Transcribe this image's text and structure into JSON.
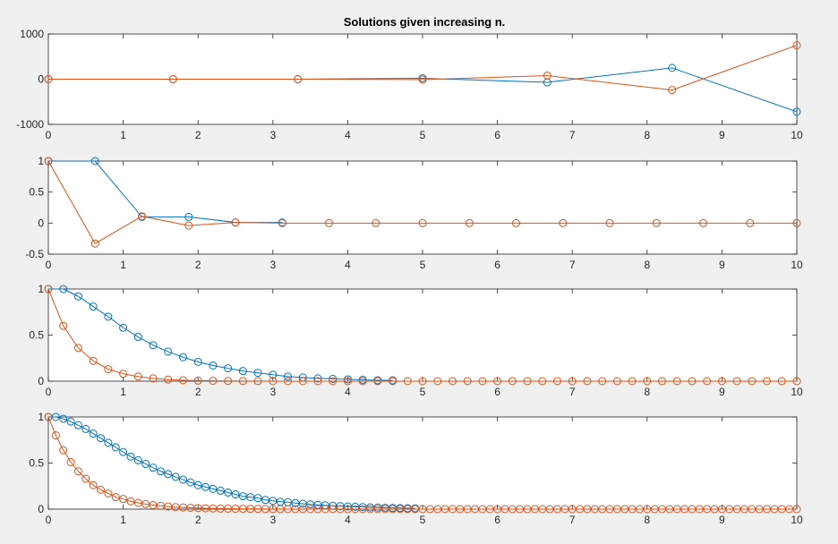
{
  "figure": {
    "title": "Solutions given increasing n."
  },
  "colors": {
    "background": "#f0f0f0",
    "axes": "#ffffff",
    "series1": "#0072bd",
    "series2": "#d95319"
  },
  "chart_data": [
    {
      "type": "line",
      "title": "Solutions given increasing n.",
      "xlim": [
        0,
        10
      ],
      "ylim": [
        -1000,
        1000
      ],
      "xticks": [
        "0",
        "1",
        "2",
        "3",
        "4",
        "5",
        "6",
        "7",
        "8",
        "9",
        "10"
      ],
      "yticks": [
        "-1000",
        "0",
        "1000"
      ],
      "ytick_values": [
        -1000,
        0,
        1000
      ],
      "series": [
        {
          "color": "#0072bd",
          "x": [
            0,
            1.6667,
            3.3333,
            5,
            6.6667,
            8.3333,
            10
          ],
          "y": [
            0,
            0,
            0,
            20,
            -70,
            250,
            -720
          ]
        },
        {
          "color": "#d95319",
          "x": [
            0,
            1.6667,
            3.3333,
            5,
            6.6667,
            8.3333,
            10
          ],
          "y": [
            0,
            0,
            0,
            -10,
            80,
            -240,
            750
          ]
        }
      ]
    },
    {
      "type": "line",
      "xlim": [
        0,
        10
      ],
      "ylim": [
        -0.5,
        1
      ],
      "xticks": [
        "0",
        "1",
        "2",
        "3",
        "4",
        "5",
        "6",
        "7",
        "8",
        "9",
        "10"
      ],
      "yticks": [
        "-0.5",
        "0",
        "0.5",
        "1"
      ],
      "ytick_values": [
        -0.5,
        0,
        0.5,
        1
      ],
      "series": [
        {
          "color": "#0072bd",
          "x": [
            0,
            0.625,
            1.25,
            1.875,
            2.5,
            3.125
          ],
          "y": [
            1,
            1,
            0.1,
            0.1,
            0.01,
            0.01
          ]
        },
        {
          "color": "#d95319",
          "x": [
            0,
            0.625,
            1.25,
            1.875,
            2.5,
            3.125,
            3.75,
            4.375,
            5,
            5.625,
            6.25,
            6.875,
            7.5,
            8.125,
            8.75,
            9.375,
            10
          ],
          "y": [
            1,
            -0.33,
            0.11,
            -0.04,
            0.01,
            0,
            0,
            0,
            0,
            0,
            0,
            0,
            0,
            0,
            0,
            0,
            0
          ]
        }
      ]
    },
    {
      "type": "line",
      "xlim": [
        0,
        10
      ],
      "ylim": [
        0,
        1
      ],
      "xticks": [
        "0",
        "1",
        "2",
        "3",
        "4",
        "5",
        "6",
        "7",
        "8",
        "9",
        "10"
      ],
      "yticks": [
        "0",
        "0.5",
        "1"
      ],
      "ytick_values": [
        0,
        0.5,
        1
      ],
      "series": [
        {
          "color": "#0072bd",
          "x": [
            0,
            0.2,
            0.4,
            0.6,
            0.8,
            1.0,
            1.2,
            1.4,
            1.6,
            1.8,
            2.0,
            2.2,
            2.4,
            2.6,
            2.8,
            3.0,
            3.2,
            3.4,
            3.6,
            3.8,
            4.0,
            4.2,
            4.4,
            4.6
          ],
          "y": [
            1.0,
            1.0,
            0.92,
            0.81,
            0.7,
            0.58,
            0.48,
            0.39,
            0.32,
            0.26,
            0.21,
            0.17,
            0.14,
            0.11,
            0.09,
            0.07,
            0.05,
            0.04,
            0.03,
            0.025,
            0.02,
            0.015,
            0.01,
            0.008
          ]
        },
        {
          "color": "#d95319",
          "x": [
            0,
            0.2,
            0.4,
            0.6,
            0.8,
            1.0,
            1.2,
            1.4,
            1.6,
            1.8,
            2.0,
            2.2,
            2.4,
            2.6,
            2.8,
            3.0,
            3.2,
            3.4,
            3.6,
            3.8,
            4.0,
            4.2,
            4.4,
            4.6,
            4.8,
            5.0,
            5.2,
            5.4,
            5.6,
            5.8,
            6.0,
            6.2,
            6.4,
            6.6,
            6.8,
            7.0,
            7.2,
            7.4,
            7.6,
            7.8,
            8.0,
            8.2,
            8.4,
            8.6,
            8.8,
            9.0,
            9.2,
            9.4,
            9.6,
            9.8,
            10.0
          ],
          "y": [
            1.0,
            0.6,
            0.36,
            0.22,
            0.13,
            0.08,
            0.05,
            0.03,
            0.017,
            0.01,
            0.006,
            0.004,
            0.002,
            0.001,
            0.001,
            0,
            0,
            0,
            0,
            0,
            0,
            0,
            0,
            0,
            0,
            0,
            0,
            0,
            0,
            0,
            0,
            0,
            0,
            0,
            0,
            0,
            0,
            0,
            0,
            0,
            0,
            0,
            0,
            0,
            0,
            0,
            0,
            0,
            0,
            0,
            0
          ]
        }
      ]
    },
    {
      "type": "line",
      "xlim": [
        0,
        10
      ],
      "ylim": [
        0,
        1
      ],
      "xticks": [
        "0",
        "1",
        "2",
        "3",
        "4",
        "5",
        "6",
        "7",
        "8",
        "9",
        "10"
      ],
      "yticks": [
        "0",
        "0.5",
        "1"
      ],
      "ytick_values": [
        0,
        0.5,
        1
      ],
      "series": [
        {
          "color": "#0072bd",
          "x": [
            0,
            0.1,
            0.2,
            0.3,
            0.4,
            0.5,
            0.6,
            0.7,
            0.8,
            0.9,
            1.0,
            1.1,
            1.2,
            1.3,
            1.4,
            1.5,
            1.6,
            1.7,
            1.8,
            1.9,
            2.0,
            2.1,
            2.2,
            2.3,
            2.4,
            2.5,
            2.6,
            2.7,
            2.8,
            2.9,
            3.0,
            3.1,
            3.2,
            3.3,
            3.4,
            3.5,
            3.6,
            3.7,
            3.8,
            3.9,
            4.0,
            4.1,
            4.2,
            4.3,
            4.4,
            4.5,
            4.6,
            4.7,
            4.8,
            4.9
          ],
          "y": [
            1.0,
            1.0,
            0.98,
            0.95,
            0.91,
            0.87,
            0.82,
            0.77,
            0.72,
            0.67,
            0.62,
            0.57,
            0.53,
            0.49,
            0.45,
            0.41,
            0.38,
            0.35,
            0.32,
            0.29,
            0.26,
            0.24,
            0.22,
            0.2,
            0.18,
            0.16,
            0.14,
            0.13,
            0.12,
            0.1,
            0.09,
            0.08,
            0.075,
            0.065,
            0.058,
            0.052,
            0.046,
            0.041,
            0.036,
            0.032,
            0.028,
            0.025,
            0.022,
            0.019,
            0.017,
            0.015,
            0.013,
            0.012,
            0.01,
            0.009
          ]
        },
        {
          "color": "#d95319",
          "x": [
            0,
            0.1,
            0.2,
            0.3,
            0.4,
            0.5,
            0.6,
            0.7,
            0.8,
            0.9,
            1.0,
            1.1,
            1.2,
            1.3,
            1.4,
            1.5,
            1.6,
            1.7,
            1.8,
            1.9,
            2.0,
            2.1,
            2.2,
            2.3,
            2.4,
            2.5,
            2.6,
            2.7,
            2.8,
            2.9,
            3.0,
            3.1,
            3.2,
            3.3,
            3.4,
            3.5,
            3.6,
            3.7,
            3.8,
            3.9,
            4.0,
            4.1,
            4.2,
            4.3,
            4.4,
            4.5,
            4.6,
            4.7,
            4.8,
            4.9,
            5.0,
            5.1,
            5.2,
            5.3,
            5.4,
            5.5,
            5.6,
            5.7,
            5.8,
            5.9,
            6.0,
            6.1,
            6.2,
            6.3,
            6.4,
            6.5,
            6.6,
            6.7,
            6.8,
            6.9,
            7.0,
            7.1,
            7.2,
            7.3,
            7.4,
            7.5,
            7.6,
            7.7,
            7.8,
            7.9,
            8.0,
            8.1,
            8.2,
            8.3,
            8.4,
            8.5,
            8.6,
            8.7,
            8.8,
            8.9,
            9.0,
            9.1,
            9.2,
            9.3,
            9.4,
            9.5,
            9.6,
            9.7,
            9.8,
            9.9,
            10.0
          ],
          "y": [
            1.0,
            0.8,
            0.64,
            0.51,
            0.41,
            0.33,
            0.26,
            0.21,
            0.17,
            0.13,
            0.11,
            0.085,
            0.068,
            0.055,
            0.044,
            0.035,
            0.028,
            0.022,
            0.018,
            0.014,
            0.011,
            0.009,
            0.007,
            0.006,
            0.005,
            0.004,
            0.003,
            0.002,
            0.002,
            0.001,
            0.001,
            0.001,
            0,
            0,
            0,
            0,
            0,
            0,
            0,
            0,
            0,
            0,
            0,
            0,
            0,
            0,
            0,
            0,
            0,
            0,
            0,
            0,
            0,
            0,
            0,
            0,
            0,
            0,
            0,
            0,
            0,
            0,
            0,
            0,
            0,
            0,
            0,
            0,
            0,
            0,
            0,
            0,
            0,
            0,
            0,
            0,
            0,
            0,
            0,
            0,
            0,
            0,
            0,
            0,
            0,
            0,
            0,
            0,
            0,
            0,
            0,
            0,
            0,
            0,
            0,
            0,
            0,
            0,
            0,
            0,
            0
          ]
        }
      ]
    }
  ]
}
